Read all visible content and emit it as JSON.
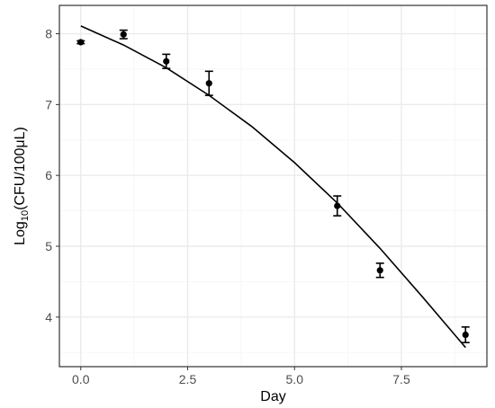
{
  "chart_data": {
    "type": "scatter",
    "xlabel": "Day",
    "ylabel": {
      "prefix": "Log",
      "sub": "10",
      "suffix": "(CFU/100μL)"
    },
    "xlim": [
      -0.5,
      9.5
    ],
    "ylim": [
      3.3,
      8.4
    ],
    "xticks": [
      0.0,
      2.5,
      5.0,
      7.5
    ],
    "xtick_labels": [
      "0.0",
      "2.5",
      "5.0",
      "7.5"
    ],
    "yticks": [
      4,
      5,
      6,
      7,
      8
    ],
    "ytick_labels": [
      "4",
      "5",
      "6",
      "7",
      "8"
    ],
    "grid": true,
    "points": [
      {
        "x": 0,
        "y": 7.88,
        "err": 0.02
      },
      {
        "x": 1,
        "y": 7.99,
        "err": 0.06
      },
      {
        "x": 2,
        "y": 7.61,
        "err": 0.1
      },
      {
        "x": 3,
        "y": 7.3,
        "err": 0.17
      },
      {
        "x": 6,
        "y": 5.57,
        "err": 0.14
      },
      {
        "x": 7,
        "y": 4.66,
        "err": 0.1
      },
      {
        "x": 9,
        "y": 3.75,
        "err": 0.11
      }
    ],
    "fit_line": {
      "x": [
        0,
        1,
        2,
        3,
        4,
        5,
        6,
        7,
        8,
        9
      ],
      "y": [
        8.11,
        7.84,
        7.52,
        7.13,
        6.69,
        6.18,
        5.61,
        4.97,
        4.28,
        3.57
      ]
    },
    "colors": {
      "panel_border": "#333333",
      "grid_major": "#ebebeb",
      "grid_minor": "#f5f5f5",
      "marks": "#000000",
      "tick_text": "#4d4d4d"
    }
  }
}
